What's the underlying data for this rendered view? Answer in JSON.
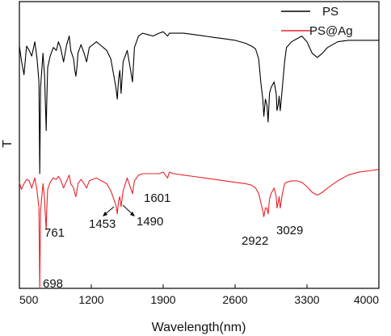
{
  "chart_data": {
    "type": "line",
    "title": "",
    "xlabel": "Wavelength(nm)",
    "ylabel": "T",
    "xlim": [
      500,
      4000
    ],
    "ylim": [
      0,
      100
    ],
    "xticks": [
      500,
      1200,
      1900,
      2600,
      3300,
      4000
    ],
    "xtick_labels": [
      "500",
      "1200",
      "1900",
      "2600",
      "3300",
      "4000"
    ],
    "grid": false,
    "legend_position": "top-right",
    "series": [
      {
        "name": "PS",
        "color": "#000000",
        "x": [
          500,
          520,
          545,
          570,
          595,
          620,
          650,
          672,
          690,
          698,
          706,
          730,
          745,
          752,
          758,
          761,
          766,
          775,
          800,
          830,
          860,
          880,
          900,
          930,
          960,
          985,
          1000,
          1028,
          1040,
          1050,
          1060,
          1070,
          1100,
          1130,
          1154,
          1180,
          1250,
          1300,
          1350,
          1390,
          1420,
          1440,
          1453,
          1466,
          1478,
          1490,
          1510,
          1550,
          1583,
          1601,
          1620,
          1660,
          1700,
          1750,
          1800,
          1860,
          1900,
          1943,
          1960,
          2000,
          2100,
          2200,
          2300,
          2400,
          2500,
          2600,
          2700,
          2760,
          2800,
          2830,
          2850,
          2870,
          2880,
          2895,
          2910,
          2922,
          2935,
          2950,
          2980,
          3000,
          3008,
          3020,
          3029,
          3040,
          3060,
          3082,
          3100,
          3150,
          3200,
          3250,
          3300,
          3350,
          3400,
          3450,
          3500,
          3600,
          3700,
          3800,
          3900,
          4000
        ],
        "y": [
          84.5,
          79.5,
          74.5,
          84.5,
          83,
          81,
          86,
          80,
          72,
          40,
          70,
          82,
          74,
          66,
          59,
          55,
          64,
          77,
          81,
          84,
          83,
          86,
          84,
          79,
          85,
          88,
          83,
          80,
          76,
          74,
          77,
          82,
          85,
          82,
          79,
          84,
          86,
          84.5,
          83,
          80,
          74,
          70,
          66,
          73,
          76,
          68,
          79,
          83,
          76,
          72,
          84,
          88,
          89,
          88.5,
          88,
          89,
          89.5,
          88,
          89,
          89,
          89,
          88.5,
          88,
          87.5,
          87,
          86.5,
          85.5,
          84.5,
          83.5,
          80,
          72,
          66,
          60,
          66,
          64,
          58,
          68,
          70,
          72,
          68,
          62,
          64,
          67,
          62,
          70,
          79,
          84,
          86,
          87,
          88,
          86,
          82,
          80.5,
          82,
          84,
          86,
          86.5,
          86.5,
          86.5,
          86.5
        ]
      },
      {
        "name": "PS@Ag",
        "color": "#e8232a",
        "x": [
          500,
          520,
          545,
          570,
          595,
          620,
          650,
          672,
          690,
          698,
          706,
          730,
          745,
          752,
          758,
          761,
          766,
          775,
          800,
          830,
          860,
          880,
          900,
          930,
          960,
          985,
          1000,
          1028,
          1040,
          1050,
          1060,
          1070,
          1100,
          1130,
          1154,
          1180,
          1250,
          1300,
          1350,
          1390,
          1420,
          1440,
          1453,
          1466,
          1478,
          1490,
          1510,
          1550,
          1583,
          1601,
          1620,
          1660,
          1700,
          1750,
          1800,
          1860,
          1900,
          1943,
          1960,
          2000,
          2100,
          2200,
          2300,
          2400,
          2500,
          2600,
          2700,
          2760,
          2800,
          2830,
          2850,
          2870,
          2880,
          2895,
          2910,
          2922,
          2935,
          2950,
          2980,
          3000,
          3008,
          3020,
          3029,
          3040,
          3060,
          3082,
          3100,
          3150,
          3200,
          3250,
          3300,
          3350,
          3400,
          3450,
          3500,
          3600,
          3700,
          3800,
          3900,
          4000
        ],
        "y": [
          37,
          34.5,
          36.5,
          38,
          37.5,
          35,
          38.5,
          34,
          28,
          0,
          27,
          36.5,
          31,
          26,
          22,
          20.5,
          27,
          34.5,
          37,
          38.5,
          38,
          39,
          38,
          35,
          37.5,
          39.5,
          36.5,
          35,
          33,
          32,
          34,
          36.5,
          38,
          36.5,
          35,
          37.5,
          38.5,
          37.5,
          36.5,
          34,
          31,
          29,
          26,
          30.5,
          32,
          28.5,
          34,
          38.5,
          35,
          33,
          37.5,
          39.5,
          40,
          40,
          40,
          40,
          40.5,
          38.5,
          40.5,
          40,
          39.5,
          39,
          38.5,
          38,
          37.5,
          37,
          36.5,
          36,
          35,
          33,
          30,
          27,
          25,
          28,
          28,
          26,
          31,
          33,
          35,
          32,
          28,
          30,
          32,
          28,
          33,
          36.5,
          37,
          37.5,
          37.5,
          37,
          35.5,
          33.5,
          32.5,
          33.5,
          35,
          37.5,
          39.5,
          40.5,
          41,
          41.5
        ]
      }
    ],
    "annotations": [
      {
        "text": "698",
        "x": 698
      },
      {
        "text": "761",
        "x": 761
      },
      {
        "text": "1453",
        "x": 1453
      },
      {
        "text": "1490",
        "x": 1490
      },
      {
        "text": "1601",
        "x": 1601
      },
      {
        "text": "2922",
        "x": 2922
      },
      {
        "text": "3029",
        "x": 3029
      }
    ]
  }
}
